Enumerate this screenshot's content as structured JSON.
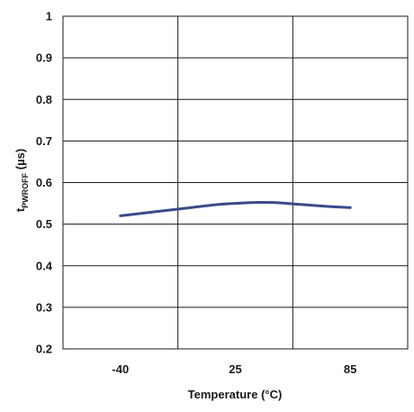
{
  "chart_data": {
    "type": "line",
    "xlabel": "Temperature (°C)",
    "ylabel": {
      "main": "t",
      "subscript": "PWROFF",
      "unit": " (µs)"
    },
    "x_ticks": [
      "-40",
      "25",
      "85"
    ],
    "y_ticks": [
      "0.2",
      "0.3",
      "0.4",
      "0.5",
      "0.6",
      "0.7",
      "0.8",
      "0.9",
      "1"
    ],
    "ylim": [
      0.2,
      1.0
    ],
    "grid": true,
    "legend": "none",
    "line_color": "#3b4a8c",
    "series": [
      {
        "x": [
          -40,
          -20,
          0,
          15,
          25,
          35,
          45,
          60,
          75,
          85
        ],
        "y": [
          0.52,
          0.53,
          0.54,
          0.547,
          0.55,
          0.552,
          0.552,
          0.547,
          0.542,
          0.54
        ]
      }
    ]
  }
}
